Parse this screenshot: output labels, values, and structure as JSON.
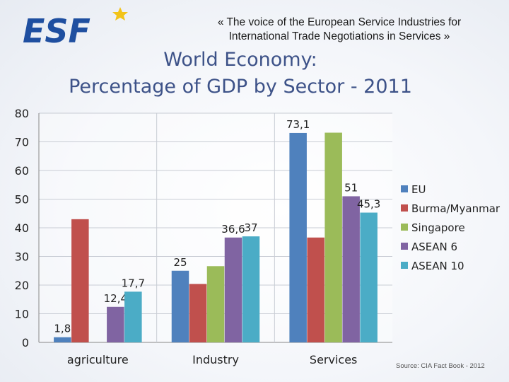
{
  "header": {
    "logo_text": "ESF",
    "tagline_line1": "«  The voice of the European Service Industries for",
    "tagline_line2": "International Trade Negotiations in Services  »",
    "title_line1": "World Economy:",
    "title_line2": "Percentage of GDP by Sector - 2011"
  },
  "source_note": "Source: CIA Fact Book - 2012",
  "colors": {
    "brand_blue": "#1f4fa0",
    "star_yellow": "#f2c318",
    "title": "#3d5288"
  },
  "chart_data": {
    "type": "bar",
    "title": "World Economy: Percentage of GDP by Sector - 2011",
    "xlabel": "",
    "ylabel": "",
    "ylim": [
      0,
      80
    ],
    "yticks": [
      0,
      10,
      20,
      30,
      40,
      50,
      60,
      70,
      80
    ],
    "grid": true,
    "legend_position": "right",
    "categories": [
      "agriculture",
      "Industry",
      "Services"
    ],
    "series": [
      {
        "name": "EU",
        "color": "#4f81bd",
        "values": [
          1.8,
          25,
          73.1
        ],
        "labels": [
          "1,8",
          "25",
          "73,1"
        ]
      },
      {
        "name": "Burma/Myanmar",
        "color": "#c0504d",
        "values": [
          43,
          20.4,
          36.6
        ],
        "labels": [
          "",
          "",
          ""
        ]
      },
      {
        "name": "Singapore",
        "color": "#9bbb59",
        "values": [
          0,
          26.6,
          73.2
        ],
        "labels": [
          "",
          "",
          ""
        ]
      },
      {
        "name": "ASEAN 6",
        "color": "#8064a2",
        "values": [
          12.4,
          36.6,
          51
        ],
        "labels": [
          "12,4",
          "36,6",
          "51"
        ]
      },
      {
        "name": "ASEAN 10",
        "color": "#4bacc6",
        "values": [
          17.7,
          37,
          45.3
        ],
        "labels": [
          "17,7",
          "37",
          "45,3"
        ]
      }
    ]
  }
}
